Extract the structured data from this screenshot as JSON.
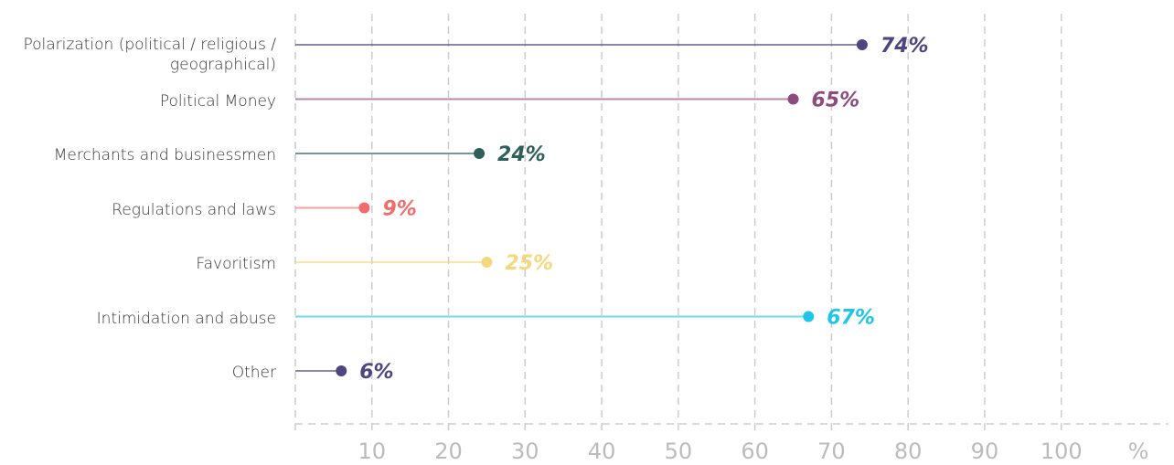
{
  "chart_data": {
    "type": "lollipop",
    "categories": [
      "Polarization (political / religious / geographical)",
      "Political Money",
      "Merchants and businessmen",
      "Regulations and laws",
      "Favoritism",
      "Intimidation and abuse",
      "Other"
    ],
    "values": [
      74,
      65,
      24,
      9,
      25,
      67,
      6
    ],
    "value_labels": [
      "74%",
      "65%",
      "24%",
      "9%",
      "25%",
      "67%",
      "6%"
    ],
    "colors": [
      "#4f4580",
      "#8e4a7c",
      "#2f5f5a",
      "#f46b6b",
      "#f7d77e",
      "#1fc6e8",
      "#4f4580"
    ],
    "xlim": [
      0,
      114
    ],
    "xticks": [
      10,
      20,
      30,
      40,
      50,
      60,
      70,
      80,
      90,
      100
    ],
    "xlabel": "%",
    "grid": true
  }
}
